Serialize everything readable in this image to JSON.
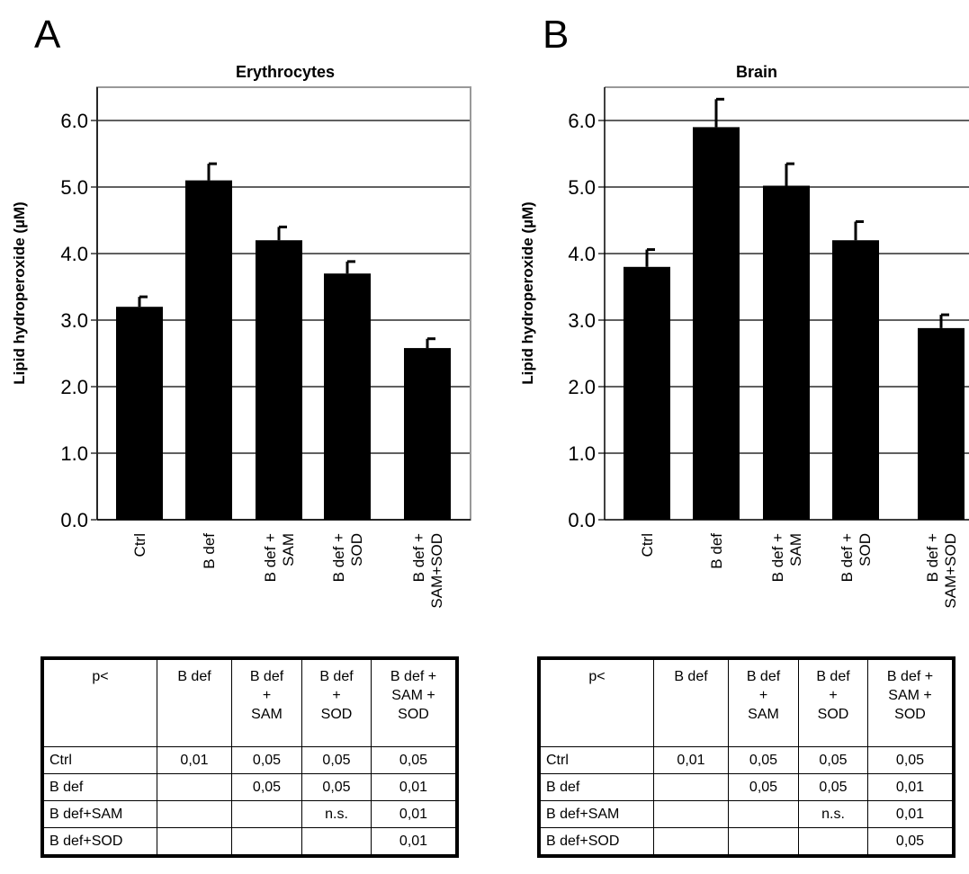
{
  "panels": [
    {
      "letter": "A"
    },
    {
      "letter": "B"
    }
  ],
  "chart_data": [
    {
      "type": "bar",
      "title": "Erythrocytes",
      "xlabel": "",
      "ylabel": "Lipid hydroperoxide (µM)",
      "categories": [
        "Ctrl",
        "B def",
        "B def + SAM",
        "B def + SOD",
        "B def + SAM+SOD"
      ],
      "values": [
        3.2,
        5.1,
        4.2,
        3.7,
        2.58
      ],
      "errors": [
        0.15,
        0.25,
        0.2,
        0.18,
        0.14
      ],
      "ylim": [
        0,
        6.5
      ],
      "yticks": [
        "0.0",
        "1.0",
        "2.0",
        "3.0",
        "4.0",
        "5.0",
        "6.0"
      ],
      "grid": true,
      "bar_color": "#000000"
    },
    {
      "type": "bar",
      "title": "Brain",
      "xlabel": "",
      "ylabel": "Lipid hydroperoxide (µM)",
      "categories": [
        "Ctrl",
        "B def",
        "B def + SAM",
        "B def + SOD",
        "B def + SAM+SOD"
      ],
      "values": [
        3.8,
        5.9,
        5.02,
        4.2,
        2.88
      ],
      "errors": [
        0.26,
        0.42,
        0.33,
        0.28,
        0.2
      ],
      "ylim": [
        0,
        6.5
      ],
      "yticks": [
        "0.0",
        "1.0",
        "2.0",
        "3.0",
        "4.0",
        "5.0",
        "6.0"
      ],
      "grid": true,
      "bar_color": "#000000"
    }
  ],
  "tables": [
    {
      "header": [
        "p<",
        "B def",
        "B def\n+\nSAM",
        "B def\n+\nSOD",
        "B def +\nSAM +\nSOD"
      ],
      "rows": [
        [
          "Ctrl",
          "0,01",
          "0,05",
          "0,05",
          "0,05"
        ],
        [
          "B def",
          "",
          "0,05",
          "0,05",
          "0,01"
        ],
        [
          "B def+SAM",
          "",
          "",
          "n.s.",
          "0,01"
        ],
        [
          "B def+SOD",
          "",
          "",
          "",
          "0,01"
        ]
      ]
    },
    {
      "header": [
        "p<",
        "B def",
        "B def\n+\nSAM",
        "B def\n+\nSOD",
        "B def +\nSAM +\nSOD"
      ],
      "rows": [
        [
          "Ctrl",
          "0,01",
          "0,05",
          "0,05",
          "0,05"
        ],
        [
          "B def",
          "",
          "0,05",
          "0,05",
          "0,01"
        ],
        [
          "B def+SAM",
          "",
          "",
          "n.s.",
          "0,01"
        ],
        [
          "B def+SOD",
          "",
          "",
          "",
          "0,05"
        ]
      ]
    }
  ]
}
